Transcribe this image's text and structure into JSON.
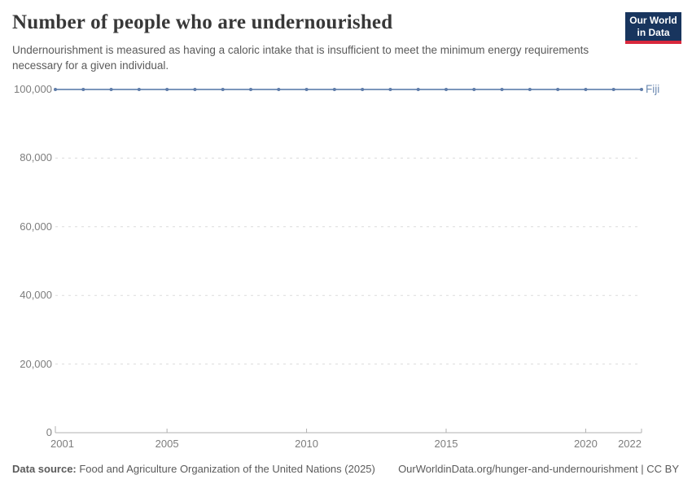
{
  "header": {
    "title": "Number of people who are undernourished",
    "subtitle": "Undernourishment is measured as having a caloric intake that is insufficient to meet the minimum energy requirements necessary for a given individual."
  },
  "logo": {
    "line1": "Our World",
    "line2": "in Data"
  },
  "chart_data": {
    "type": "line",
    "title": "Number of people who are undernourished",
    "x": [
      2001,
      2002,
      2003,
      2004,
      2005,
      2006,
      2007,
      2008,
      2009,
      2010,
      2011,
      2012,
      2013,
      2014,
      2015,
      2016,
      2017,
      2018,
      2019,
      2020,
      2021,
      2022
    ],
    "series": [
      {
        "name": "Fiji",
        "values": [
          100000,
          100000,
          100000,
          100000,
          100000,
          100000,
          100000,
          100000,
          100000,
          100000,
          100000,
          100000,
          100000,
          100000,
          100000,
          100000,
          100000,
          100000,
          100000,
          100000,
          100000,
          100000
        ]
      }
    ],
    "xlabel": "",
    "ylabel": "",
    "xlim": [
      2001,
      2022
    ],
    "ylim": [
      0,
      100000
    ],
    "yticks": [
      {
        "value": 0,
        "label": "0"
      },
      {
        "value": 20000,
        "label": "20,000"
      },
      {
        "value": 40000,
        "label": "40,000"
      },
      {
        "value": 60000,
        "label": "60,000"
      },
      {
        "value": 80000,
        "label": "80,000"
      },
      {
        "value": 100000,
        "label": "100,000"
      }
    ],
    "xticks": [
      {
        "value": 2001,
        "label": "2001"
      },
      {
        "value": 2005,
        "label": "2005"
      },
      {
        "value": 2010,
        "label": "2010"
      },
      {
        "value": 2015,
        "label": "2015"
      },
      {
        "value": 2020,
        "label": "2020"
      },
      {
        "value": 2022,
        "label": "2022"
      }
    ],
    "grid": "horizontal-dashed",
    "legend_position": "end-of-line"
  },
  "footer": {
    "source_label": "Data source:",
    "source_text": " Food and Agriculture Organization of the United Nations (2025)",
    "link_text": "OurWorldinData.org/hunger-and-undernourishment",
    "license_suffix": " | CC BY"
  },
  "colors": {
    "line": "#7b96bb",
    "marker": "#5e7ca9",
    "entity_label": "#6f8cb3",
    "grid": "#dcdcdc",
    "axis": "#b0b0b0",
    "logo_bg": "#18355e",
    "logo_stripe": "#d8283c"
  }
}
